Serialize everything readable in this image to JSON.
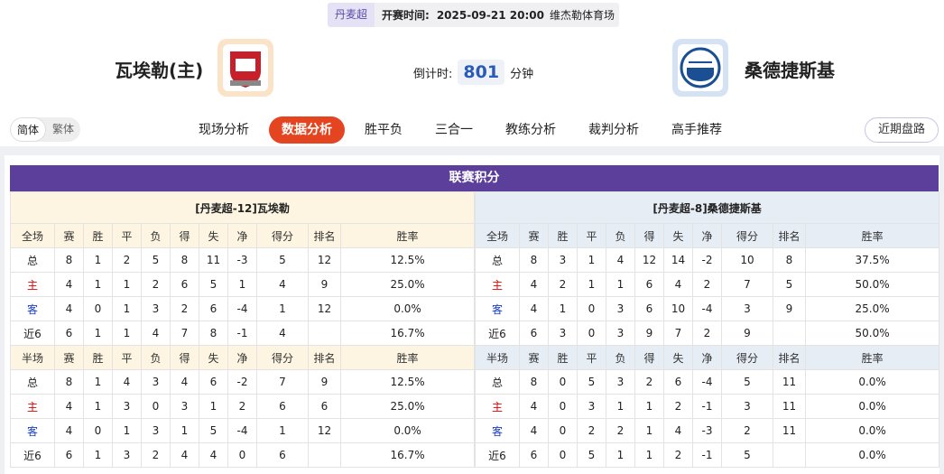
{
  "header": {
    "league": "丹麦超",
    "time_label": "开赛时间:",
    "time": "2025-09-21 20:00",
    "venue": "维杰勒体育场"
  },
  "match": {
    "home": "瓦埃勒(主)",
    "away": "桑德捷斯基",
    "countdown_label": "倒计时:",
    "countdown": 801,
    "countdown_unit": "分钟"
  },
  "nav": {
    "languages": [
      "简体",
      "繁体"
    ],
    "active_language": 0,
    "tabs": [
      "现场分析",
      "数据分析",
      "胜平负",
      "三合一",
      "教练分析",
      "裁判分析",
      "高手推荐"
    ],
    "active_tab": 1,
    "side_button": "近期盘路"
  },
  "standings": {
    "title": "联赛积分",
    "sides": [
      {
        "title": "[丹麦超-12]瓦埃勒",
        "full": {
          "headers": [
            "全场",
            "赛",
            "胜",
            "平",
            "负",
            "得",
            "失",
            "净",
            "得分",
            "排名",
            "胜率"
          ],
          "rows": [
            [
              "总",
              8,
              1,
              2,
              5,
              8,
              11,
              -3,
              5,
              12,
              "12.5%"
            ],
            [
              "主",
              4,
              1,
              1,
              2,
              6,
              5,
              1,
              4,
              9,
              "25.0%"
            ],
            [
              "客",
              4,
              0,
              1,
              3,
              2,
              6,
              -4,
              1,
              12,
              "0.0%"
            ],
            [
              "近6",
              6,
              1,
              1,
              4,
              7,
              8,
              -1,
              4,
              null,
              "16.7%"
            ]
          ]
        },
        "half": {
          "headers": [
            "半场",
            "赛",
            "胜",
            "平",
            "负",
            "得",
            "失",
            "净",
            "得分",
            "排名",
            "胜率"
          ],
          "rows": [
            [
              "总",
              8,
              1,
              4,
              3,
              4,
              6,
              -2,
              7,
              9,
              "12.5%"
            ],
            [
              "主",
              4,
              1,
              3,
              0,
              3,
              1,
              2,
              6,
              6,
              "25.0%"
            ],
            [
              "客",
              4,
              0,
              1,
              3,
              1,
              5,
              -4,
              1,
              12,
              "0.0%"
            ],
            [
              "近6",
              6,
              1,
              3,
              2,
              4,
              4,
              0,
              6,
              null,
              "16.7%"
            ]
          ]
        }
      },
      {
        "title": "[丹麦超-8]桑德捷斯基",
        "full": {
          "headers": [
            "全场",
            "赛",
            "胜",
            "平",
            "负",
            "得",
            "失",
            "净",
            "得分",
            "排名",
            "胜率"
          ],
          "rows": [
            [
              "总",
              8,
              3,
              1,
              4,
              12,
              14,
              -2,
              10,
              8,
              "37.5%"
            ],
            [
              "主",
              4,
              2,
              1,
              1,
              6,
              4,
              2,
              7,
              5,
              "50.0%"
            ],
            [
              "客",
              4,
              1,
              0,
              3,
              6,
              10,
              -4,
              3,
              9,
              "25.0%"
            ],
            [
              "近6",
              6,
              3,
              0,
              3,
              9,
              7,
              2,
              9,
              null,
              "50.0%"
            ]
          ]
        },
        "half": {
          "headers": [
            "半场",
            "赛",
            "胜",
            "平",
            "负",
            "得",
            "失",
            "净",
            "得分",
            "排名",
            "胜率"
          ],
          "rows": [
            [
              "总",
              8,
              0,
              5,
              3,
              2,
              6,
              -4,
              5,
              11,
              "0.0%"
            ],
            [
              "主",
              4,
              0,
              3,
              1,
              1,
              2,
              -1,
              3,
              11,
              "0.0%"
            ],
            [
              "客",
              4,
              0,
              2,
              2,
              1,
              4,
              -3,
              2,
              11,
              "0.0%"
            ],
            [
              "近6",
              6,
              0,
              5,
              1,
              1,
              2,
              -1,
              5,
              null,
              "0.0%"
            ]
          ]
        }
      }
    ]
  }
}
